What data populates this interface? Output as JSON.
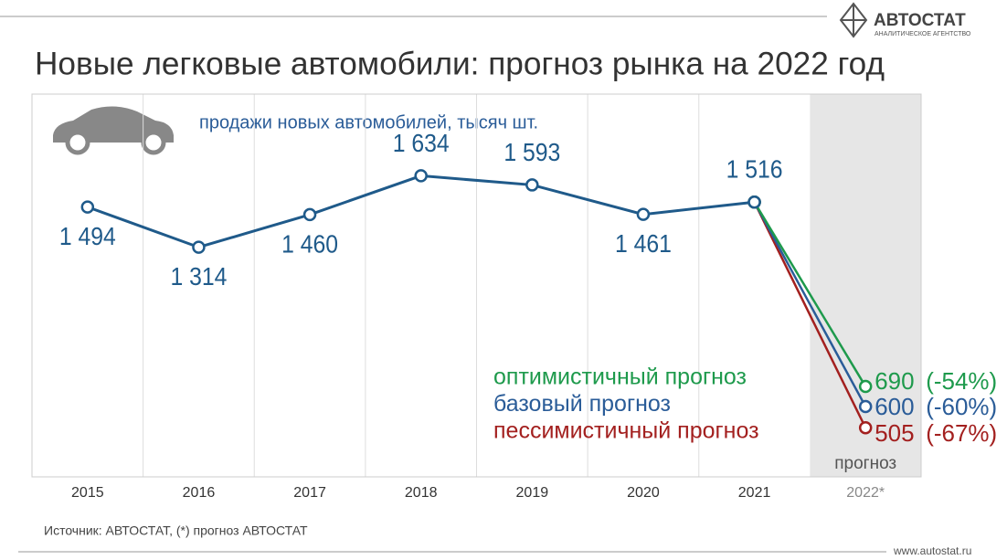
{
  "chart_data": {
    "type": "line",
    "title": "Новые легковые автомобили: прогноз рынка на 2022 год",
    "subtitle": "продажи новых автомобилей, тысяч шт.",
    "categories": [
      "2015",
      "2016",
      "2017",
      "2018",
      "2019",
      "2020",
      "2021",
      "2022*"
    ],
    "series": [
      {
        "color": "#1f5a8a",
        "values": [
          1494,
          1314,
          1460,
          1634,
          1593,
          1461,
          1516,
          null
        ],
        "value_labels": [
          "1 494",
          "1 314",
          "1 460",
          "1 634",
          "1 593",
          "1 461",
          "1 516",
          null
        ]
      },
      {
        "name": "оптимистичный прогноз",
        "color": "#1e9a4c",
        "values": [
          null,
          null,
          null,
          null,
          null,
          null,
          1516,
          690
        ],
        "value_labels": [
          null,
          null,
          null,
          null,
          null,
          null,
          null,
          "690"
        ],
        "change_label": "(-54%)"
      },
      {
        "name": "базовый прогноз",
        "color": "#2a5c98",
        "values": [
          null,
          null,
          null,
          null,
          null,
          null,
          1516,
          600
        ],
        "value_labels": [
          null,
          null,
          null,
          null,
          null,
          null,
          null,
          "600"
        ],
        "change_label": "(-60%)"
      },
      {
        "name": "пессимистичный прогноз",
        "color": "#a3201f",
        "values": [
          null,
          null,
          null,
          null,
          null,
          null,
          1516,
          505
        ],
        "value_labels": [
          null,
          null,
          null,
          null,
          null,
          null,
          null,
          "505"
        ],
        "change_label": "(-67%)"
      }
    ],
    "ylim": [
      285,
      2000
    ],
    "grid": true,
    "forecast_label": "прогноз",
    "source": "Источник: АВТОСТАТ, (*) прогноз АВТОСТАТ",
    "logo": {
      "name": "АВТОСТАТ",
      "tagline": "АНАЛИТИЧЕСКОЕ АГЕНТСТВО"
    },
    "url": "www.autostat.ru"
  }
}
